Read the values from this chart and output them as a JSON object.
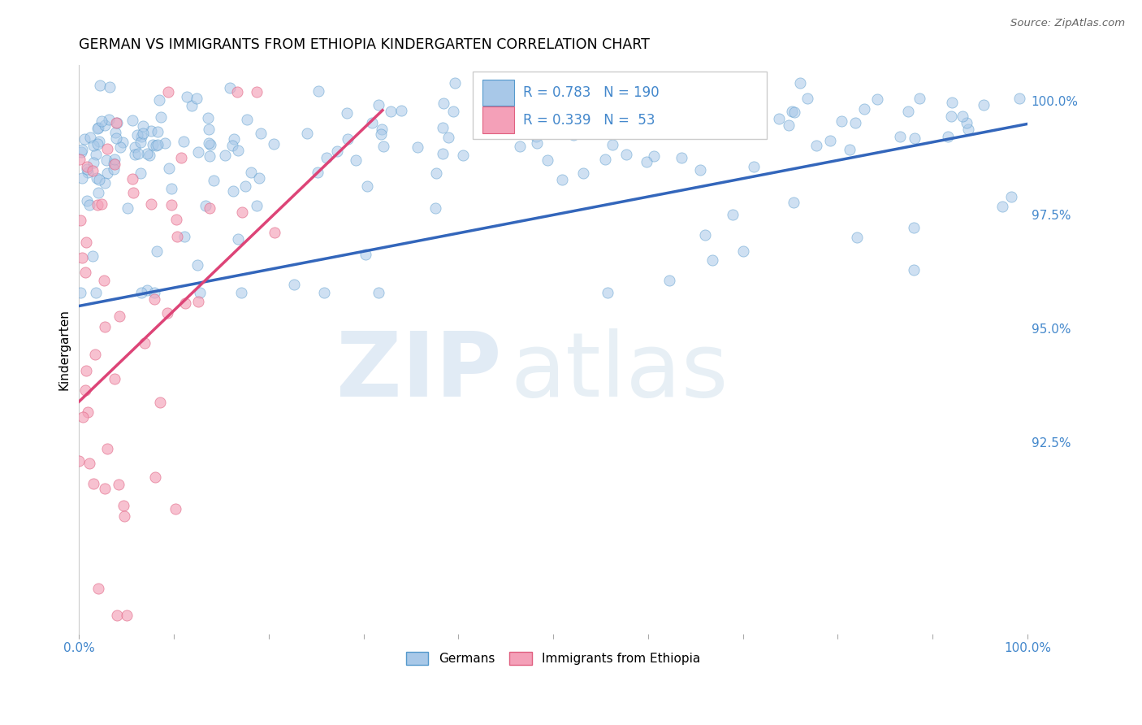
{
  "title": "GERMAN VS IMMIGRANTS FROM ETHIOPIA KINDERGARTEN CORRELATION CHART",
  "source": "Source: ZipAtlas.com",
  "ylabel": "Kindergarten",
  "ytick_labels": [
    "92.5%",
    "95.0%",
    "97.5%",
    "100.0%"
  ],
  "ytick_values": [
    0.925,
    0.95,
    0.975,
    1.0
  ],
  "xrange": [
    0.0,
    1.0
  ],
  "yrange": [
    0.883,
    1.008
  ],
  "legend_blue_R": "0.783",
  "legend_blue_N": "190",
  "legend_pink_R": "0.339",
  "legend_pink_N": "53",
  "legend_blue_label": "Germans",
  "legend_pink_label": "Immigrants from Ethiopia",
  "blue_color": "#a8c8e8",
  "pink_color": "#f4a0b8",
  "blue_edge_color": "#5599cc",
  "pink_edge_color": "#e06080",
  "blue_line_color": "#3366bb",
  "pink_line_color": "#dd4477",
  "blue_scatter_alpha": 0.55,
  "pink_scatter_alpha": 0.65,
  "scatter_size": 90,
  "background_color": "#ffffff",
  "grid_color": "#cccccc",
  "tick_color": "#4488cc",
  "blue_trend_start_x": 0.0,
  "blue_trend_start_y": 0.955,
  "blue_trend_end_x": 1.0,
  "blue_trend_end_y": 0.995,
  "pink_trend_start_x": 0.0,
  "pink_trend_start_y": 0.934,
  "pink_trend_end_x": 0.32,
  "pink_trend_end_y": 0.998
}
